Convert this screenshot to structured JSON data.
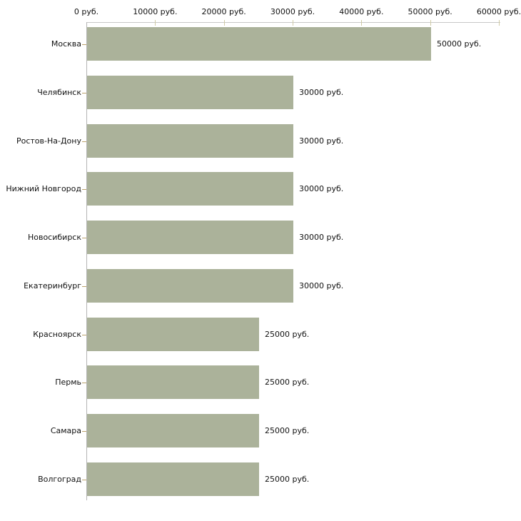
{
  "chart_data": {
    "type": "bar",
    "orientation": "horizontal",
    "title": "",
    "xlabel": "",
    "ylabel": "",
    "unit": "руб.",
    "categories": [
      "Москва",
      "Челябинск",
      "Ростов-На-Дону",
      "Нижний Новгород",
      "Новосибирск",
      "Екатеринбург",
      "Красноярск",
      "Пермь",
      "Самара",
      "Волгоград"
    ],
    "values": [
      50000,
      30000,
      30000,
      30000,
      30000,
      30000,
      25000,
      25000,
      25000,
      25000
    ],
    "value_labels": [
      "50000 руб.",
      "30000 руб.",
      "30000 руб.",
      "30000 руб.",
      "30000 руб.",
      "30000 руб.",
      "25000 руб.",
      "25000 руб.",
      "25000 руб.",
      "25000 руб."
    ],
    "xlim": [
      0,
      60000
    ],
    "x_ticks": [
      0,
      10000,
      20000,
      30000,
      40000,
      50000,
      60000
    ],
    "x_tick_labels": [
      "0 руб.",
      "10000 руб.",
      "20000 руб.",
      "30000 руб.",
      "40000 руб.",
      "50000 руб.",
      "60000 руб."
    ],
    "grid": false,
    "legend": null
  },
  "colors": {
    "background": "#ffffff",
    "bar": "#abb29a",
    "x_axis_line": "#c8c8c8",
    "y_axis_line": "#b4b4b4",
    "axis_tick": "#d0cba6",
    "category_tick": "#bba26b",
    "text": "#111111"
  }
}
